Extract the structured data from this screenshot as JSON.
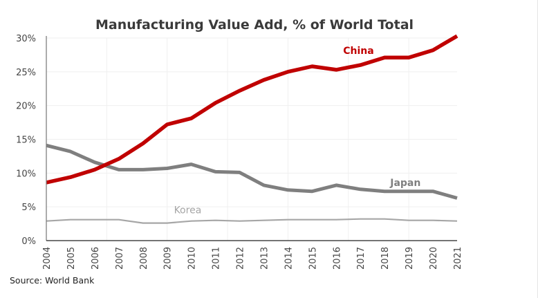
{
  "chart_data": {
    "type": "line",
    "title": "Manufacturing Value Add, % of World Total",
    "xlabel": "",
    "ylabel": "",
    "source": "Source: World Bank",
    "ylim": [
      0,
      30
    ],
    "yticks": [
      0,
      5,
      10,
      15,
      20,
      25,
      30
    ],
    "ytick_labels": [
      "0%",
      "5%",
      "10%",
      "15%",
      "20%",
      "25%",
      "30%"
    ],
    "grid": true,
    "legend": "inline labels",
    "x": [
      "2004",
      "2005",
      "2006",
      "2007",
      "2008",
      "2009",
      "2010",
      "2011",
      "2012",
      "2013",
      "2014",
      "2015",
      "2016",
      "2017",
      "2018",
      "2019",
      "2020",
      "2021"
    ],
    "series": [
      {
        "name": "China",
        "label": "China",
        "color": "#c00000",
        "values": [
          8.6,
          9.4,
          10.5,
          12.1,
          14.4,
          17.2,
          18.1,
          20.4,
          22.2,
          23.8,
          25.0,
          25.8,
          25.3,
          26.0,
          27.1,
          27.1,
          28.2,
          30.3
        ]
      },
      {
        "name": "Japan",
        "label": "Japan",
        "color": "#7f7f7f",
        "values": [
          14.1,
          13.2,
          11.6,
          10.5,
          10.5,
          10.7,
          11.3,
          10.2,
          10.1,
          8.2,
          7.5,
          7.3,
          8.2,
          7.6,
          7.3,
          7.3,
          7.3,
          6.3
        ]
      },
      {
        "name": "Korea",
        "label": "Korea",
        "color": "#a6a6a6",
        "values": [
          2.9,
          3.1,
          3.1,
          3.1,
          2.6,
          2.6,
          2.9,
          3.0,
          2.9,
          3.0,
          3.1,
          3.1,
          3.1,
          3.2,
          3.2,
          3.0,
          3.0,
          2.9
        ]
      }
    ]
  }
}
